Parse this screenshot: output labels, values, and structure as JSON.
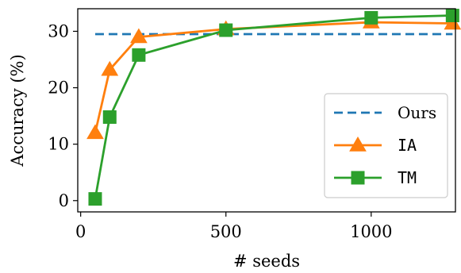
{
  "chart_data": {
    "type": "line",
    "xlabel": "# seeds",
    "ylabel": "Accuracy (%)",
    "xlim": [
      -10,
      1290
    ],
    "ylim": [
      -2,
      34
    ],
    "xticks": [
      0,
      500,
      1000
    ],
    "xtick_labels": [
      "0",
      "500",
      "1000"
    ],
    "yticks": [
      0,
      10,
      20,
      30
    ],
    "ytick_labels": [
      "0",
      "10",
      "20",
      "30"
    ],
    "grid": false,
    "legend_position": "lower-right",
    "series": [
      {
        "name": "Ours",
        "style": "dashed",
        "color": "#1f77b4",
        "x": [
          50,
          1280
        ],
        "y": [
          29.5,
          29.5
        ]
      },
      {
        "name": "IA",
        "style": "line-triangle",
        "color": "#ff7f0e",
        "x": [
          50,
          100,
          200,
          500,
          1000,
          1280
        ],
        "y": [
          12.0,
          23.2,
          29.0,
          30.4,
          31.6,
          31.4
        ]
      },
      {
        "name": "TM",
        "style": "line-square",
        "color": "#2ca02c",
        "x": [
          50,
          100,
          200,
          500,
          1000,
          1280
        ],
        "y": [
          0.3,
          14.8,
          25.8,
          30.2,
          32.4,
          32.8
        ]
      }
    ]
  }
}
